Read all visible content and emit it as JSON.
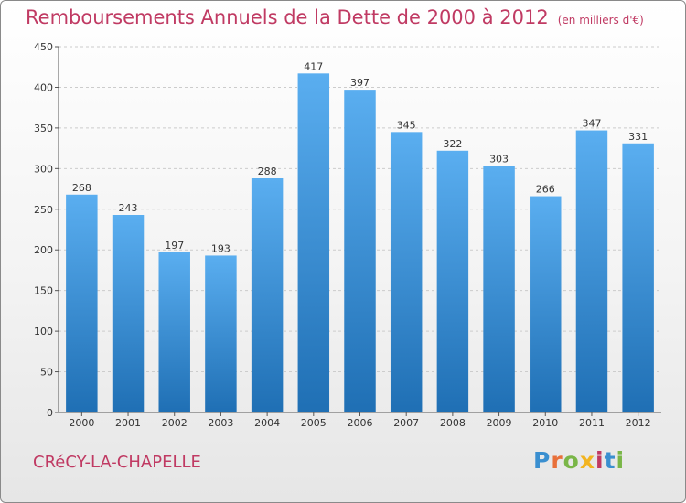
{
  "header": {
    "title": "Remboursements Annuels de la Dette de 2000 à 2012",
    "unit": "(en milliers d'€)"
  },
  "footer": {
    "town": "CRéCY-LA-CHAPELLE",
    "logo": "Proxiti"
  },
  "colors": {
    "title": "#c03a63",
    "bar_top": "#5aaef0",
    "bar_bottom": "#1f6fb4",
    "grid": "#cccccc"
  },
  "chart_data": {
    "type": "bar",
    "title": "Remboursements Annuels de la Dette de 2000 à 2012",
    "xlabel": "",
    "ylabel": "",
    "categories": [
      "2000",
      "2001",
      "2002",
      "2003",
      "2004",
      "2005",
      "2006",
      "2007",
      "2008",
      "2009",
      "2010",
      "2011",
      "2012"
    ],
    "values": [
      268,
      243,
      197,
      193,
      288,
      417,
      397,
      345,
      322,
      303,
      266,
      347,
      331
    ],
    "ylim": [
      0,
      450
    ],
    "yticks": [
      0,
      50,
      100,
      150,
      200,
      250,
      300,
      350,
      400,
      450
    ],
    "grid": true,
    "legend": "none",
    "data_labels": true
  }
}
